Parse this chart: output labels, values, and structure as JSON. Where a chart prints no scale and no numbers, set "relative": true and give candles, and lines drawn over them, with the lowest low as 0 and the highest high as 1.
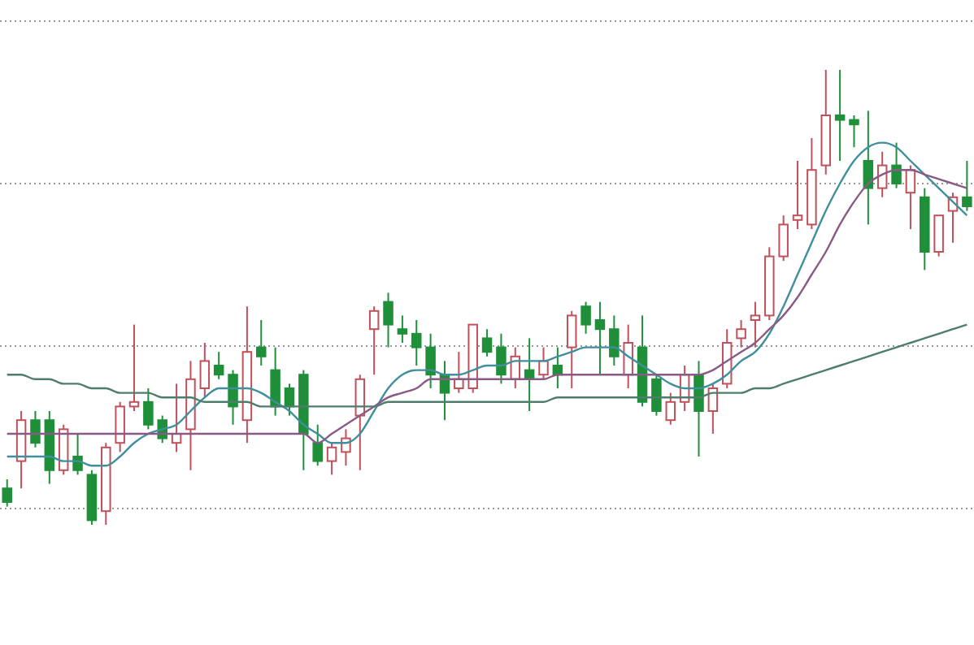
{
  "chart_data": {
    "type": "candlestick",
    "relative": true,
    "grid": "y",
    "categories": [
      null,
      null,
      null,
      null,
      null,
      null,
      null,
      null,
      null,
      null,
      null,
      null,
      null,
      null,
      null,
      null,
      null,
      null,
      null,
      null,
      null,
      null,
      null,
      null,
      null,
      null,
      null,
      null,
      null,
      null,
      null,
      null,
      null,
      null,
      null,
      null,
      null,
      null,
      null,
      null,
      null,
      null,
      null,
      null,
      null,
      null,
      null,
      null,
      null,
      null,
      null,
      null,
      null,
      null,
      null,
      null,
      null,
      null,
      null,
      null,
      null,
      null,
      null,
      null,
      null,
      null,
      null,
      null,
      null
    ],
    "ohlc": [
      [
        0.08,
        0.1,
        0.04,
        0.05
      ],
      [
        0.14,
        0.25,
        0.08,
        0.23
      ],
      [
        0.23,
        0.25,
        0.17,
        0.18
      ],
      [
        0.23,
        0.25,
        0.09,
        0.12
      ],
      [
        0.12,
        0.22,
        0.11,
        0.21
      ],
      [
        0.15,
        0.2,
        0.11,
        0.12
      ],
      [
        0.11,
        0.12,
        0,
        0.01
      ],
      [
        0.03,
        0.18,
        0,
        0.17
      ],
      [
        0.18,
        0.27,
        0.16,
        0.26
      ],
      [
        0.26,
        0.44,
        0.25,
        0.27
      ],
      [
        0.27,
        0.3,
        0.21,
        0.22
      ],
      [
        0.23,
        0.24,
        0.18,
        0.19
      ],
      [
        0.18,
        0.31,
        0.16,
        0.2
      ],
      [
        0.21,
        0.36,
        0.12,
        0.32
      ],
      [
        0.3,
        0.4,
        0.28,
        0.36
      ],
      [
        0.35,
        0.38,
        0.32,
        0.33
      ],
      [
        0.33,
        0.34,
        0.22,
        0.26
      ],
      [
        0.23,
        0.48,
        0.18,
        0.38
      ],
      [
        0.39,
        0.45,
        0.35,
        0.37
      ],
      [
        0.34,
        0.39,
        0.24,
        0.26
      ],
      [
        0.3,
        0.31,
        0.24,
        0.26
      ],
      [
        0.33,
        0.34,
        0.12,
        0.2
      ],
      [
        0.18,
        0.22,
        0.13,
        0.14
      ],
      [
        0.14,
        0.18,
        0.11,
        0.17
      ],
      [
        0.16,
        0.21,
        0.13,
        0.19
      ],
      [
        0.24,
        0.33,
        0.12,
        0.32
      ],
      [
        0.43,
        0.48,
        0.33,
        0.47
      ],
      [
        0.49,
        0.51,
        0.39,
        0.44
      ],
      [
        0.43,
        0.46,
        0.4,
        0.42
      ],
      [
        0.42,
        0.45,
        0.35,
        0.39
      ],
      [
        0.39,
        0.42,
        0.3,
        0.33
      ],
      [
        0.33,
        0.36,
        0.23,
        0.29
      ],
      [
        0.3,
        0.38,
        0.29,
        0.32
      ],
      [
        0.3,
        0.44,
        0.29,
        0.44
      ],
      [
        0.41,
        0.43,
        0.37,
        0.38
      ],
      [
        0.39,
        0.42,
        0.31,
        0.33
      ],
      [
        0.32,
        0.39,
        0.3,
        0.37
      ],
      [
        0.34,
        0.41,
        0.25,
        0.32
      ],
      [
        0.33,
        0.39,
        0.32,
        0.36
      ],
      [
        0.35,
        0.39,
        0.3,
        0.33
      ],
      [
        0.39,
        0.47,
        0.3,
        0.46
      ],
      [
        0.48,
        0.49,
        0.42,
        0.44
      ],
      [
        0.45,
        0.49,
        0.33,
        0.43
      ],
      [
        0.43,
        0.46,
        0.35,
        0.37
      ],
      [
        0.33,
        0.44,
        0.3,
        0.4
      ],
      [
        0.39,
        0.46,
        0.26,
        0.27
      ],
      [
        0.32,
        0.33,
        0.24,
        0.25
      ],
      [
        0.23,
        0.29,
        0.22,
        0.27
      ],
      [
        0.27,
        0.35,
        0.25,
        0.33
      ],
      [
        0.33,
        0.36,
        0.15,
        0.25
      ],
      [
        0.25,
        0.31,
        0.2,
        0.3
      ],
      [
        0.31,
        0.43,
        0.3,
        0.4
      ],
      [
        0.41,
        0.45,
        0.39,
        0.43
      ],
      [
        0.45,
        0.49,
        0.39,
        0.46
      ],
      [
        0.46,
        0.61,
        0.45,
        0.59
      ],
      [
        0.59,
        0.68,
        0.58,
        0.66
      ],
      [
        0.67,
        0.8,
        0.65,
        0.68
      ],
      [
        0.66,
        0.85,
        0.65,
        0.78
      ],
      [
        0.79,
        1,
        0.77,
        0.9
      ],
      [
        0.9,
        1,
        0.8,
        0.89
      ],
      [
        0.89,
        0.9,
        0.83,
        0.88
      ],
      [
        0.8,
        0.91,
        0.66,
        0.74
      ],
      [
        0.74,
        0.82,
        0.72,
        0.79
      ],
      [
        0.79,
        0.84,
        0.74,
        0.75
      ],
      [
        0.73,
        0.79,
        0.65,
        0.78
      ],
      [
        0.72,
        0.74,
        0.56,
        0.6
      ],
      [
        0.6,
        0.68,
        0.59,
        0.68
      ],
      [
        0.69,
        0.73,
        0.62,
        0.72
      ],
      [
        0.72,
        0.8,
        0.69,
        0.7
      ]
    ],
    "series": [
      {
        "type": "line",
        "color": "#3f8f9c",
        "values": [
          0.15,
          0.15,
          0.15,
          0.15,
          0.14,
          0.14,
          0.13,
          0.13,
          0.15,
          0.18,
          0.2,
          0.21,
          0.22,
          0.25,
          0.28,
          0.3,
          0.3,
          0.3,
          0.29,
          0.27,
          0.25,
          0.22,
          0.2,
          0.18,
          0.18,
          0.2,
          0.25,
          0.3,
          0.33,
          0.34,
          0.34,
          0.33,
          0.33,
          0.34,
          0.35,
          0.35,
          0.36,
          0.36,
          0.36,
          0.37,
          0.38,
          0.39,
          0.39,
          0.39,
          0.37,
          0.35,
          0.33,
          0.31,
          0.3,
          0.3,
          0.31,
          0.33,
          0.36,
          0.38,
          0.42,
          0.48,
          0.55,
          0.62,
          0.69,
          0.75,
          0.8,
          0.83,
          0.84,
          0.83,
          0.8,
          0.77,
          0.74,
          0.71,
          0.68
        ]
      },
      {
        "type": "line",
        "color": "#8a5a86",
        "values": [
          0.2,
          0.2,
          0.2,
          0.2,
          0.2,
          0.2,
          0.2,
          0.2,
          0.2,
          0.2,
          0.2,
          0.2,
          0.2,
          0.2,
          0.2,
          0.2,
          0.2,
          0.2,
          0.2,
          0.2,
          0.2,
          0.2,
          0.18,
          0.2,
          0.22,
          0.24,
          0.26,
          0.28,
          0.29,
          0.3,
          0.32,
          0.32,
          0.32,
          0.32,
          0.32,
          0.32,
          0.32,
          0.32,
          0.32,
          0.33,
          0.33,
          0.33,
          0.33,
          0.33,
          0.33,
          0.33,
          0.33,
          0.33,
          0.33,
          0.33,
          0.34,
          0.36,
          0.38,
          0.4,
          0.43,
          0.46,
          0.5,
          0.55,
          0.6,
          0.66,
          0.71,
          0.75,
          0.77,
          0.78,
          0.78,
          0.77,
          0.76,
          0.75,
          0.74
        ]
      },
      {
        "type": "line",
        "color": "#4f7d6c",
        "values": [
          0.33,
          0.33,
          0.32,
          0.32,
          0.31,
          0.31,
          0.3,
          0.3,
          0.29,
          0.29,
          0.29,
          0.28,
          0.28,
          0.28,
          0.27,
          0.27,
          0.27,
          0.27,
          0.26,
          0.26,
          0.26,
          0.26,
          0.26,
          0.26,
          0.26,
          0.26,
          0.26,
          0.27,
          0.27,
          0.27,
          0.27,
          0.27,
          0.27,
          0.27,
          0.27,
          0.27,
          0.27,
          0.27,
          0.27,
          0.28,
          0.28,
          0.28,
          0.28,
          0.28,
          0.28,
          0.28,
          0.28,
          0.28,
          0.28,
          0.28,
          0.29,
          0.29,
          0.29,
          0.3,
          0.3,
          0.31,
          0.32,
          0.33,
          0.34,
          0.35,
          0.36,
          0.37,
          0.38,
          0.39,
          0.4,
          0.41,
          0.42,
          0.43,
          0.44
        ]
      }
    ]
  }
}
